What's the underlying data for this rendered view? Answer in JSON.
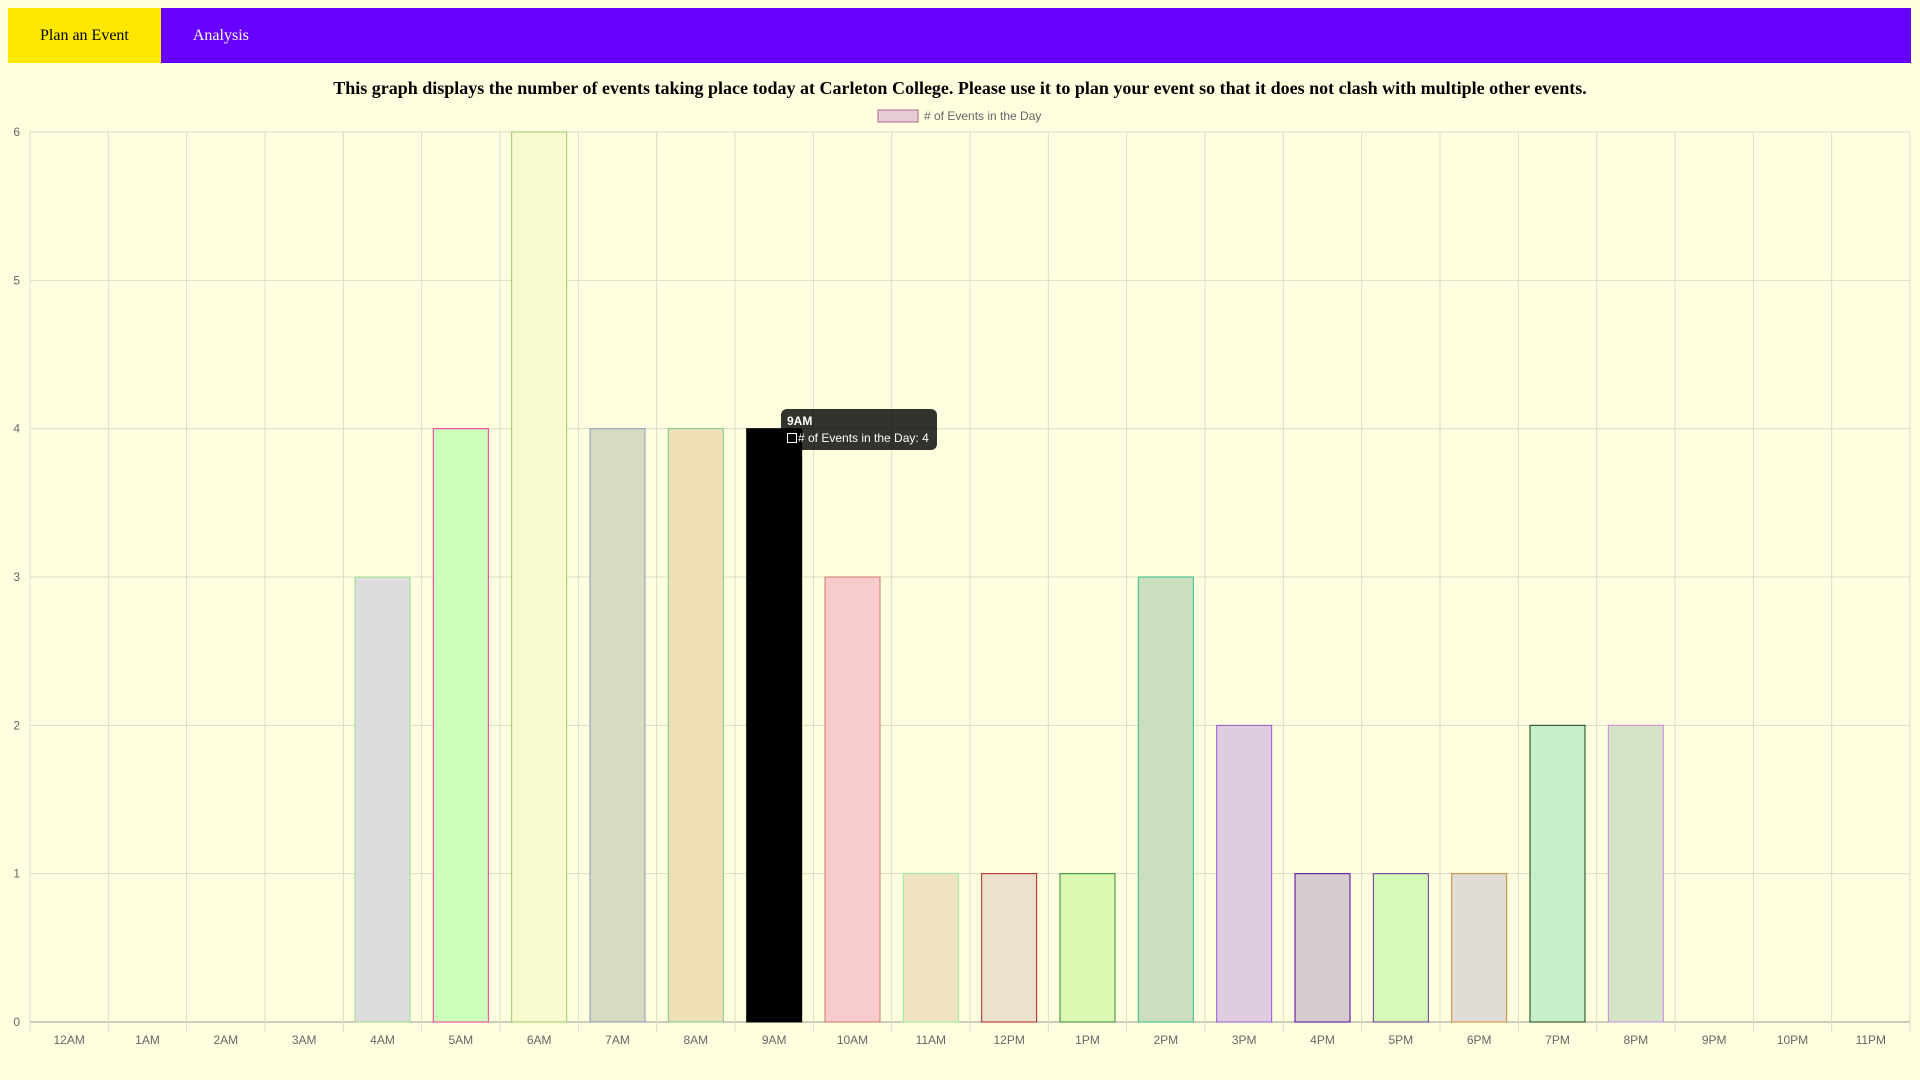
{
  "nav": {
    "items": [
      {
        "label": "Plan an Event",
        "active": true
      },
      {
        "label": "Analysis",
        "active": false
      }
    ],
    "colors": {
      "background": "#6600ff",
      "active": "#ffe800"
    }
  },
  "page_title": "This graph displays the number of events taking place today at Carleton College. Please use it to plan your event so that it does not clash with multiple other events.",
  "tooltip": {
    "title": "9AM",
    "label": "# of Events in the Day: 4"
  },
  "chart_data": {
    "type": "bar",
    "categories": [
      "12AM",
      "1AM",
      "2AM",
      "3AM",
      "4AM",
      "5AM",
      "6AM",
      "7AM",
      "8AM",
      "9AM",
      "10AM",
      "11AM",
      "12PM",
      "1PM",
      "2PM",
      "3PM",
      "4PM",
      "5PM",
      "6PM",
      "7PM",
      "8PM",
      "9PM",
      "10PM",
      "11PM"
    ],
    "series": [
      {
        "name": "# of Events in the Day",
        "values": [
          0,
          0,
          0,
          0,
          3,
          4,
          6,
          4,
          4,
          4,
          3,
          1,
          1,
          1,
          3,
          2,
          1,
          1,
          1,
          2,
          2,
          0,
          0,
          0
        ]
      }
    ],
    "ylim": [
      0,
      6
    ],
    "yticks": [
      0,
      1,
      2,
      3,
      4,
      5,
      6
    ],
    "grid": true,
    "legend": "top-center",
    "fill_colors": [
      "#dddde0",
      "#dddde0",
      "#dddde0",
      "#dddde0",
      "#dddde0",
      "#ccffbb",
      "#fafad0",
      "#d5dcc0",
      "#efdfb6",
      "#000000",
      "#f8cccc",
      "#efe3c2",
      "#ece2cc",
      "#dbf9b3",
      "#c9dfc0",
      "#decde0",
      "#d5cdcd",
      "#d6f9b9",
      "#e0ddd6",
      "#c9eeca",
      "#d5e3c9",
      "#dddde0",
      "#dddde0",
      "#dddde0"
    ],
    "border_colors": [
      "#88cc88",
      "#88cc88",
      "#88cc88",
      "#88cc88",
      "#99dd88",
      "#ff3399",
      "#99cc66",
      "#8899bb",
      "#77cc88",
      "#000000",
      "#cc7766",
      "#99ee99",
      "#aa2222",
      "#338833",
      "#33bb88",
      "#9955cc",
      "#550099",
      "#663399",
      "#cc8833",
      "#114411",
      "#cc88dd",
      "#88cc88",
      "#88cc88",
      "#88cc88"
    ],
    "legend_swatch": {
      "fill": "#e8cdd6",
      "border": "#aa6688"
    },
    "highlight_index": 9
  }
}
